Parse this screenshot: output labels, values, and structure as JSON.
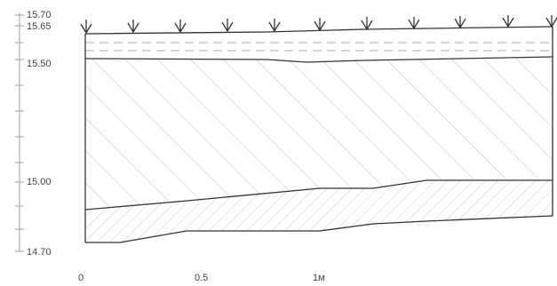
{
  "diagram": {
    "y_axis": {
      "labels": [
        "15.70",
        "15.65",
        "15.50",
        "15.00",
        "14.70"
      ],
      "values": [
        15.7,
        15.65,
        15.5,
        15.0,
        14.7
      ]
    },
    "x_axis": {
      "labels": [
        "0",
        "0.5",
        "1м"
      ]
    },
    "layers": [
      {
        "name": "top-dashed-band",
        "top": 15.65,
        "bottom": 15.5,
        "pattern": "dashed"
      },
      {
        "name": "diagonal-hatch-layer",
        "top": 15.5,
        "bottom": 14.9,
        "pattern": "diagonal"
      },
      {
        "name": "cross-hatch-layer",
        "top": 14.9,
        "bottom": 14.7,
        "pattern": "cross"
      }
    ]
  }
}
